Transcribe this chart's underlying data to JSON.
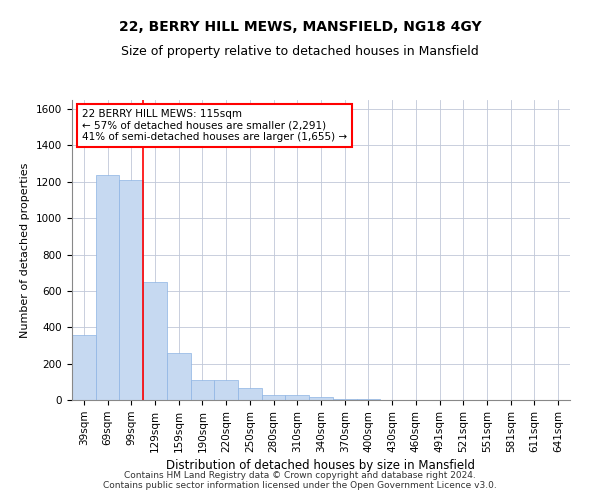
{
  "title1": "22, BERRY HILL MEWS, MANSFIELD, NG18 4GY",
  "title2": "Size of property relative to detached houses in Mansfield",
  "xlabel": "Distribution of detached houses by size in Mansfield",
  "ylabel": "Number of detached properties",
  "categories": [
    "39sqm",
    "69sqm",
    "99sqm",
    "129sqm",
    "159sqm",
    "190sqm",
    "220sqm",
    "250sqm",
    "280sqm",
    "310sqm",
    "340sqm",
    "370sqm",
    "400sqm",
    "430sqm",
    "460sqm",
    "491sqm",
    "521sqm",
    "551sqm",
    "581sqm",
    "611sqm",
    "641sqm"
  ],
  "values": [
    360,
    1240,
    1210,
    650,
    260,
    110,
    110,
    65,
    30,
    25,
    15,
    8,
    8,
    0,
    0,
    0,
    0,
    0,
    0,
    0,
    0
  ],
  "bar_color": "#c6d9f1",
  "bar_edge_color": "#8db4e3",
  "ref_line_x": 2.5,
  "ref_line_color": "red",
  "annotation_text": "22 BERRY HILL MEWS: 115sqm\n← 57% of detached houses are smaller (2,291)\n41% of semi-detached houses are larger (1,655) →",
  "annotation_box_color": "white",
  "annotation_box_edge": "red",
  "ylim": [
    0,
    1650
  ],
  "yticks": [
    0,
    200,
    400,
    600,
    800,
    1000,
    1200,
    1400,
    1600
  ],
  "grid_color": "#c0c8d8",
  "footnote": "Contains HM Land Registry data © Crown copyright and database right 2024.\nContains public sector information licensed under the Open Government Licence v3.0.",
  "title1_fontsize": 10,
  "title2_fontsize": 9,
  "xlabel_fontsize": 8.5,
  "ylabel_fontsize": 8,
  "tick_fontsize": 7.5,
  "footnote_fontsize": 6.5,
  "annot_fontsize": 7.5
}
